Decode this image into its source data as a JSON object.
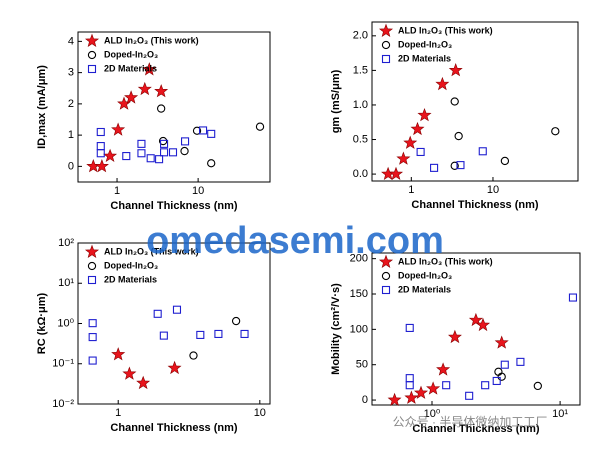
{
  "chart_data": [
    {
      "type": "scatter",
      "x_label": "Channel Thickness (nm)",
      "y_label": "ID,max (mA/μm)",
      "xscale": "log",
      "xlim": [
        0.33,
        77
      ],
      "xticks": [
        1,
        10
      ],
      "ylim": [
        -0.5,
        4.3
      ],
      "yticks": [
        0,
        1,
        2,
        3,
        4
      ],
      "legend": "upper left",
      "series": [
        {
          "name": "ALD In₂O₃ (This work)",
          "color": "#e8141c",
          "marker": "star",
          "x": [
            0.51,
            0.65,
            0.82,
            1.03,
            1.22,
            1.49,
            2.2,
            2.5,
            3.5
          ],
          "values": [
            0,
            0,
            0.33,
            1.17,
            2.0,
            2.2,
            2.47,
            3.1,
            2.4
          ]
        },
        {
          "name": "Doped-In₂O₃",
          "color": "#000000",
          "marker": "circle",
          "x": [
            3.5,
            3.7,
            6.8,
            9.7,
            14.5,
            58
          ],
          "values": [
            1.85,
            0.81,
            0.49,
            1.14,
            0.1,
            1.27
          ]
        },
        {
          "name": "2D Materials",
          "color": "#1f1fd0",
          "marker": "square",
          "x": [
            0.63,
            0.63,
            0.63,
            1.3,
            2.0,
            2.0,
            2.6,
            3.3,
            3.8,
            3.8,
            4.9,
            6.9,
            11.5,
            14.5
          ],
          "values": [
            1.1,
            0.65,
            0.42,
            0.33,
            0.42,
            0.72,
            0.26,
            0.23,
            0.72,
            0.45,
            0.45,
            0.8,
            1.15,
            1.04
          ]
        }
      ]
    },
    {
      "type": "scatter",
      "x_label": "Channel Thickness (nm)",
      "y_label": "gm (mS/μm)",
      "xscale": "log",
      "xlim": [
        0.33,
        110
      ],
      "xticks": [
        1,
        10
      ],
      "ylim": [
        -0.1,
        2.2
      ],
      "yticks": [
        {
          "value": 0,
          "label": "0.0"
        },
        {
          "value": 0.5,
          "label": "0.5"
        },
        {
          "value": 1,
          "label": "1.0"
        },
        {
          "value": 1.5,
          "label": "1.5"
        },
        {
          "value": 2,
          "label": "2.0"
        }
      ],
      "legend": "upper left",
      "series": [
        {
          "name": "ALD In₂O₃ (This work)",
          "color": "#e8141c",
          "marker": "star",
          "x": [
            0.52,
            0.65,
            0.8,
            0.97,
            1.19,
            1.45,
            2.4,
            3.5
          ],
          "values": [
            0,
            0,
            0.22,
            0.45,
            0.65,
            0.85,
            1.3,
            1.5
          ]
        },
        {
          "name": "Doped-In₂O₃",
          "color": "#000000",
          "marker": "circle",
          "x": [
            3.4,
            3.8,
            3.4,
            14,
            58
          ],
          "values": [
            1.05,
            0.55,
            0.12,
            0.19,
            0.62
          ]
        },
        {
          "name": "2D Materials",
          "color": "#1f1fd0",
          "marker": "square",
          "x": [
            1.3,
            1.9,
            4.0,
            7.5
          ],
          "values": [
            0.32,
            0.09,
            0.13,
            0.33
          ]
        }
      ]
    },
    {
      "type": "scatter",
      "x_label": "Channel Thickness (nm)",
      "y_label": "RC (kΩ·μm)",
      "xscale": "log",
      "yscale": "log",
      "xlim": [
        0.52,
        11.8
      ],
      "xticks": [
        1,
        10
      ],
      "ylim": [
        0.01,
        100
      ],
      "yticks": [
        {
          "value": 0.01,
          "label": "10⁻²"
        },
        {
          "value": 0.1,
          "label": "10⁻¹"
        },
        {
          "value": 1,
          "label": "10⁰"
        },
        {
          "value": 10,
          "label": "10¹"
        },
        {
          "value": 100,
          "label": "10²"
        }
      ],
      "legend": "upper left",
      "series": [
        {
          "name": "ALD In₂O₃ (This work)",
          "color": "#e8141c",
          "marker": "star",
          "x": [
            1.0,
            1.2,
            1.5,
            2.5
          ],
          "values": [
            0.17,
            0.056,
            0.033,
            0.078
          ]
        },
        {
          "name": "Doped-In₂O₃",
          "color": "#000000",
          "marker": "circle",
          "x": [
            3.4,
            6.8
          ],
          "values": [
            0.16,
            1.15
          ]
        },
        {
          "name": "2D Materials",
          "color": "#1f1fd0",
          "marker": "square",
          "x": [
            0.66,
            0.66,
            0.66,
            1.9,
            2.1,
            2.6,
            3.8,
            5.1,
            7.8
          ],
          "values": [
            1.02,
            0.46,
            0.12,
            1.74,
            0.5,
            2.2,
            0.52,
            0.55,
            0.55
          ]
        }
      ]
    },
    {
      "type": "scatter",
      "x_label": "Channel Thickness (nm)",
      "y_label": "Mobility (cm²/V·s)",
      "xscale": "log",
      "xlim": [
        0.34,
        14.3
      ],
      "xticks": [
        {
          "value": 1,
          "label": "10⁰"
        },
        {
          "value": 10,
          "label": "10¹"
        }
      ],
      "ylim": [
        -7,
        208
      ],
      "yticks": [
        0,
        50,
        100,
        150,
        200
      ],
      "legend": "upper left",
      "series": [
        {
          "name": "ALD In₂O₃ (This work)",
          "color": "#e8141c",
          "marker": "star",
          "x": [
            0.51,
            0.69,
            0.82,
            1.02,
            1.22,
            1.51,
            2.2,
            2.5,
            3.5
          ],
          "values": [
            0,
            3,
            10,
            16,
            43,
            89,
            113,
            106,
            81
          ]
        },
        {
          "name": "Doped-In₂O₃",
          "color": "#000000",
          "marker": "circle",
          "x": [
            3.3,
            3.5,
            6.7
          ],
          "values": [
            40,
            33,
            20
          ]
        },
        {
          "name": "2D Materials",
          "color": "#1f1fd0",
          "marker": "square",
          "x": [
            0.67,
            0.67,
            0.67,
            1.29,
            1.95,
            2.6,
            3.2,
            3.7,
            4.9,
            12.6
          ],
          "values": [
            102,
            31,
            21,
            21,
            6,
            21,
            27,
            50,
            54,
            145
          ]
        }
      ]
    }
  ],
  "watermark": [
    "omedasemi.com",
    "公众号 · 半导体微纳加工工厂"
  ]
}
